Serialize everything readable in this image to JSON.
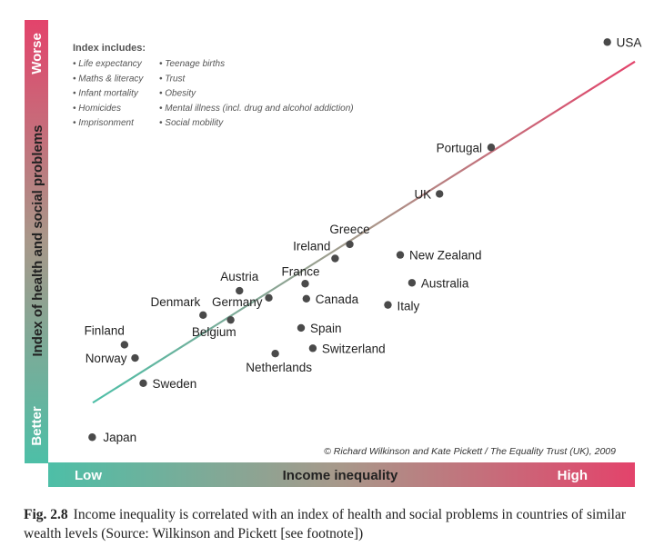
{
  "chart_data": {
    "type": "scatter",
    "title": "",
    "xlabel": "Income inequality",
    "ylabel": "Index of health and social problems",
    "x_low_label": "Low",
    "x_high_label": "High",
    "y_low_label": "Better",
    "y_high_label": "Worse",
    "xlim": [
      0,
      100
    ],
    "ylim": [
      0,
      100
    ],
    "grid": false,
    "legend": "none",
    "points": [
      {
        "label": "USA",
        "x": 95.3,
        "y": 95.0
      },
      {
        "label": "Portugal",
        "x": 75.5,
        "y": 71.2
      },
      {
        "label": "UK",
        "x": 66.7,
        "y": 60.7
      },
      {
        "label": "Greece",
        "x": 51.4,
        "y": 49.3
      },
      {
        "label": "New Zealand",
        "x": 60.0,
        "y": 46.9
      },
      {
        "label": "Ireland",
        "x": 48.9,
        "y": 46.1
      },
      {
        "label": "Australia",
        "x": 62.0,
        "y": 40.6
      },
      {
        "label": "France",
        "x": 43.8,
        "y": 40.4
      },
      {
        "label": "Austria",
        "x": 32.6,
        "y": 38.8
      },
      {
        "label": "Germany",
        "x": 37.6,
        "y": 37.2
      },
      {
        "label": "Canada",
        "x": 44.0,
        "y": 37.0
      },
      {
        "label": "Italy",
        "x": 57.9,
        "y": 35.6
      },
      {
        "label": "Denmark",
        "x": 26.4,
        "y": 33.3
      },
      {
        "label": "Belgium",
        "x": 31.1,
        "y": 32.2
      },
      {
        "label": "Spain",
        "x": 43.1,
        "y": 30.4
      },
      {
        "label": "Finland",
        "x": 13.0,
        "y": 26.6
      },
      {
        "label": "Switzerland",
        "x": 45.1,
        "y": 25.8
      },
      {
        "label": "Netherlands",
        "x": 38.7,
        "y": 24.6
      },
      {
        "label": "Norway",
        "x": 14.8,
        "y": 23.6
      },
      {
        "label": "Sweden",
        "x": 16.2,
        "y": 17.9
      },
      {
        "label": "Japan",
        "x": 7.5,
        "y": 5.7
      }
    ],
    "trend_line": {
      "x": [
        7.6,
        100.0
      ],
      "y": [
        13.5,
        90.6
      ]
    },
    "annotations": {
      "index_heading": "Index includes:",
      "index_col1": [
        "• Life expectancy",
        "• Maths & literacy",
        "• Infant mortality",
        "• Homicides",
        "• Imprisonment"
      ],
      "index_col2": [
        "• Teenage births",
        "• Trust",
        "• Obesity",
        "• Mental illness (incl. drug and alcohol addiction)",
        "• Social mobility"
      ],
      "copyright": "© Richard Wilkinson and Kate Pickett / The Equality Trust (UK), 2009"
    }
  },
  "caption": {
    "label": "Fig. 2.8",
    "text": "Income inequality is correlated with an index of health and social problems in countries of similar wealth levels (Source: Wilkinson and Pickett [see footnote])"
  },
  "colors": {
    "low": "#4dbfa7",
    "mid": "#a8988a",
    "high": "#e3436b",
    "dot": "#4a4a4a",
    "axis_text_dark": "#222222"
  }
}
